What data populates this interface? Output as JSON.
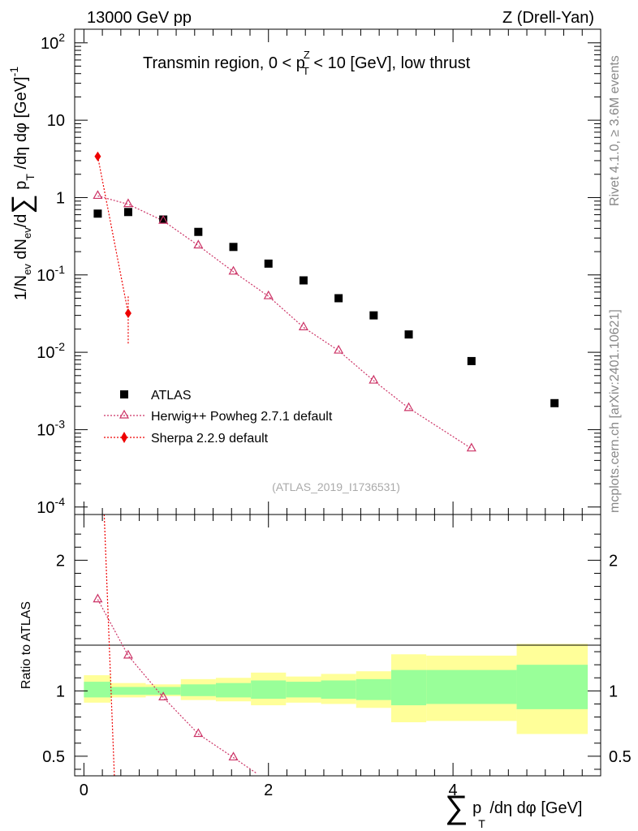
{
  "header": {
    "left": "13000 GeV pp",
    "right": "Z (Drell-Yan)"
  },
  "side_labels": {
    "rivet": "Rivet 4.1.0, ≥ 3.6M events",
    "mcplots": "mcplots.cern.ch [arXiv:2401.10621]"
  },
  "chart_data": [
    {
      "type": "scatter",
      "title": "Transmin region, 0 < p_T^Z < 10 [GeV], low thrust",
      "title_parts": {
        "prefix": "Transmin region, 0 < p",
        "sup": "Z",
        "sub": "T",
        "suffix": " < 10 [GeV], low thrust"
      },
      "ylabel": "1/N_ev dN_ev/d∑ p_T /dη dφ [GeV]^-1",
      "ylabel_parts": {
        "a": "1/N",
        "a_sub": "ev",
        "b": " dN",
        "b_sub": "ev",
        "c": "/d",
        "sum": "∑",
        "d": " p",
        "d_sub": "T",
        "e": " /dη dφ  [GeV]",
        "e_sup": "-1"
      },
      "yscale": "log",
      "ylim": [
        8e-05,
        150
      ],
      "xlim": [
        -0.1,
        5.6
      ],
      "y_ticks": [
        {
          "value": 100,
          "base": "10",
          "exp": "2"
        },
        {
          "value": 10,
          "base": "10",
          "exp": ""
        },
        {
          "value": 1,
          "base": "1",
          "exp": ""
        },
        {
          "value": 0.1,
          "base": "10",
          "exp": "-1"
        },
        {
          "value": 0.01,
          "base": "10",
          "exp": "-2"
        },
        {
          "value": 0.001,
          "base": "10",
          "exp": "-3"
        },
        {
          "value": 0.0001,
          "base": "10",
          "exp": "-4"
        }
      ],
      "watermark": "(ATLAS_2019_I1736531)",
      "legend_position": "bottom-left",
      "series": [
        {
          "name": "ATLAS",
          "marker": "square",
          "color": "#000000",
          "x": [
            0.15,
            0.48,
            0.86,
            1.24,
            1.62,
            2.0,
            2.38,
            2.76,
            3.14,
            3.52,
            4.2,
            5.1
          ],
          "y": [
            0.62,
            0.65,
            0.52,
            0.36,
            0.23,
            0.14,
            0.085,
            0.05,
            0.03,
            0.017,
            0.0077,
            0.0022
          ]
        },
        {
          "name": "Herwig++ Powheg 2.7.1 default",
          "marker": "triangle-open",
          "color": "#cc3366",
          "x": [
            0.15,
            0.48,
            0.86,
            1.24,
            1.62,
            2.0,
            2.38,
            2.76,
            3.14,
            3.52,
            4.2
          ],
          "y": [
            1.05,
            0.82,
            0.5,
            0.24,
            0.11,
            0.053,
            0.021,
            0.0105,
            0.0043,
            0.0019,
            0.00057
          ]
        },
        {
          "name": "Sherpa 2.2.9 default",
          "marker": "diamond",
          "color": "#ee0000",
          "x": [
            0.15,
            0.48
          ],
          "y": [
            3.4,
            0.032
          ],
          "err_low": [
            0,
            0.019
          ],
          "err_high": [
            0,
            0.023
          ]
        }
      ]
    },
    {
      "type": "ratio",
      "ylabel": "Ratio to ATLAS",
      "ylim": [
        0.35,
        2.35
      ],
      "xlim": [
        -0.1,
        5.6
      ],
      "xlabel": "∑ p_T /dη dφ [GeV]",
      "xlabel_parts": {
        "sum": "∑",
        "a": " p",
        "a_sub": "T",
        "b": " /dη dφ [GeV]"
      },
      "x_ticks": [
        {
          "value": 0,
          "label": "0"
        },
        {
          "value": 2,
          "label": "2"
        },
        {
          "value": 4,
          "label": "4"
        }
      ],
      "y_ticks": [
        {
          "value": 2,
          "label": "2"
        },
        {
          "value": 1,
          "label": "1"
        },
        {
          "value": 0.5,
          "label": "0.5"
        }
      ],
      "bands": {
        "edges": [
          0.0,
          0.29,
          0.67,
          1.05,
          1.43,
          1.81,
          2.19,
          2.57,
          2.95,
          3.33,
          3.71,
          4.69,
          5.46
        ],
        "yellow_low": [
          0.91,
          0.95,
          0.96,
          0.93,
          0.92,
          0.89,
          0.91,
          0.9,
          0.87,
          0.76,
          0.77,
          0.67
        ],
        "yellow_high": [
          1.12,
          1.06,
          1.05,
          1.09,
          1.1,
          1.14,
          1.11,
          1.13,
          1.15,
          1.28,
          1.27,
          1.36
        ],
        "green_low": [
          0.95,
          0.97,
          0.97,
          0.96,
          0.95,
          0.94,
          0.95,
          0.94,
          0.93,
          0.89,
          0.9,
          0.86
        ],
        "green_high": [
          1.07,
          1.03,
          1.03,
          1.05,
          1.06,
          1.08,
          1.07,
          1.08,
          1.09,
          1.16,
          1.16,
          1.2
        ],
        "yellow_color": "#ffff99",
        "green_color": "#99ff99"
      },
      "series": [
        {
          "name": "Herwig++ Powheg 2.7.1 default",
          "marker": "triangle-open",
          "color": "#cc3366",
          "x": [
            0.15,
            0.48,
            0.86,
            1.24,
            1.62
          ],
          "y": [
            1.7,
            1.27,
            0.95,
            0.67,
            0.49
          ],
          "line_x": [
            0.15,
            0.48,
            0.86,
            1.24,
            1.62,
            1.87
          ],
          "line_y": [
            1.7,
            1.27,
            0.95,
            0.67,
            0.49,
            0.37
          ]
        },
        {
          "name": "Sherpa 2.2.9 default",
          "marker": "none",
          "color": "#ee0000",
          "line_x": [
            0.22,
            0.33
          ],
          "line_y": [
            2.35,
            0.35
          ]
        }
      ]
    }
  ]
}
